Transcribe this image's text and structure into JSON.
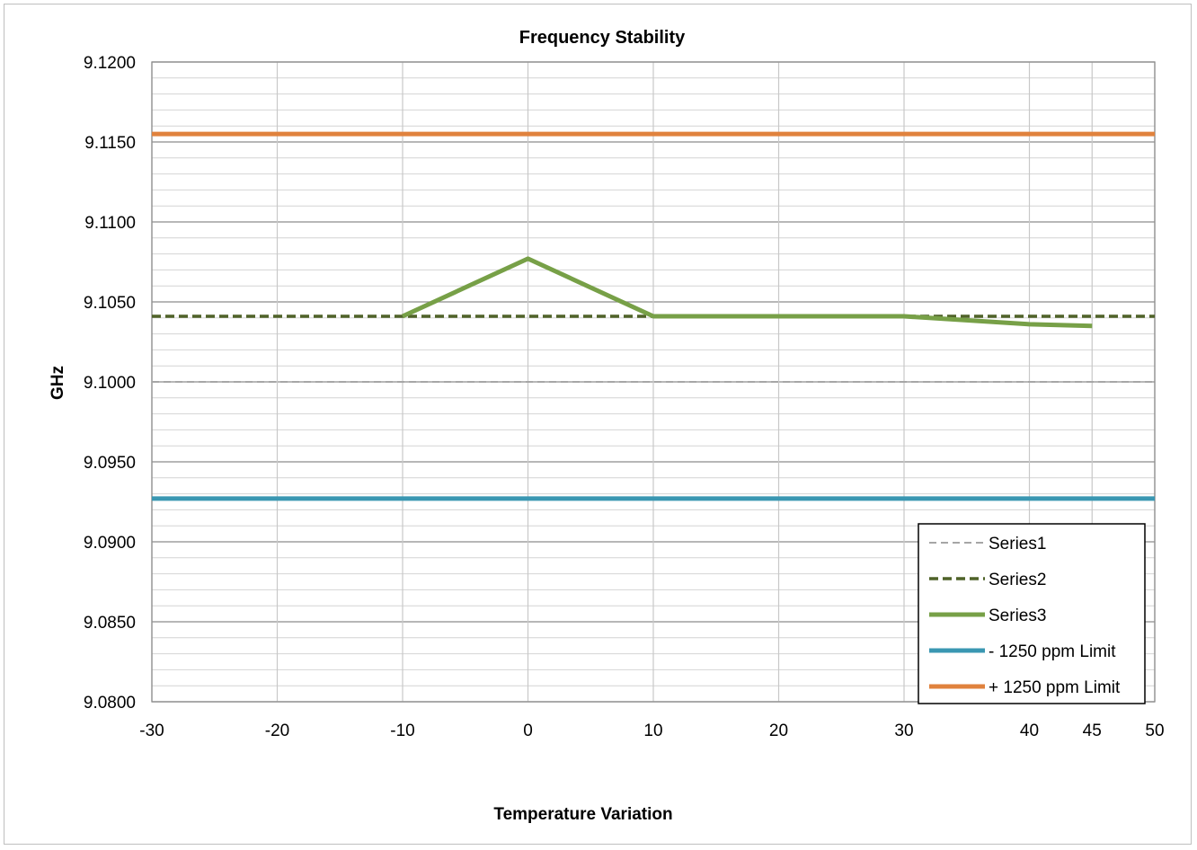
{
  "chart_data": {
    "type": "line",
    "title": "Frequency Stability",
    "xlabel": "Temperature Variation",
    "ylabel": "GHz",
    "xlim": [
      -30,
      50
    ],
    "ylim": [
      9.08,
      9.12
    ],
    "x_ticks": [
      "-30",
      "-20",
      "-10",
      "0",
      "10",
      "20",
      "30",
      "40",
      "45",
      "50"
    ],
    "y_ticks": [
      "9.0800",
      "9.0850",
      "9.0900",
      "9.0950",
      "9.1000",
      "9.1050",
      "9.1100",
      "9.1150",
      "9.1200"
    ],
    "grid": true,
    "legend_position": "bottom-right",
    "series": [
      {
        "name": "Series1",
        "color": "#a6a6a6",
        "dash": "dashed-thin",
        "points": [
          [
            -30,
            9.1
          ],
          [
            50,
            9.1
          ]
        ]
      },
      {
        "name": "Series2",
        "color": "#4f6228",
        "dash": "dashed-thick",
        "points": [
          [
            -30,
            9.1041
          ],
          [
            50,
            9.1041
          ]
        ]
      },
      {
        "name": "Series3",
        "color": "#77a047",
        "dash": "solid",
        "points": [
          [
            -10,
            9.1041
          ],
          [
            0,
            9.1077
          ],
          [
            10,
            9.1041
          ],
          [
            20,
            9.1041
          ],
          [
            30,
            9.1041
          ],
          [
            40,
            9.1036
          ],
          [
            45,
            9.1035
          ]
        ]
      },
      {
        "name": "- 1250 ppm Limit",
        "color": "#3a97b2",
        "dash": "solid",
        "points": [
          [
            -30,
            9.0927
          ],
          [
            50,
            9.0927
          ]
        ]
      },
      {
        "name": "+ 1250 ppm Limit",
        "color": "#e0823d",
        "dash": "solid",
        "points": [
          [
            -30,
            9.1155
          ],
          [
            50,
            9.1155
          ]
        ]
      }
    ]
  }
}
